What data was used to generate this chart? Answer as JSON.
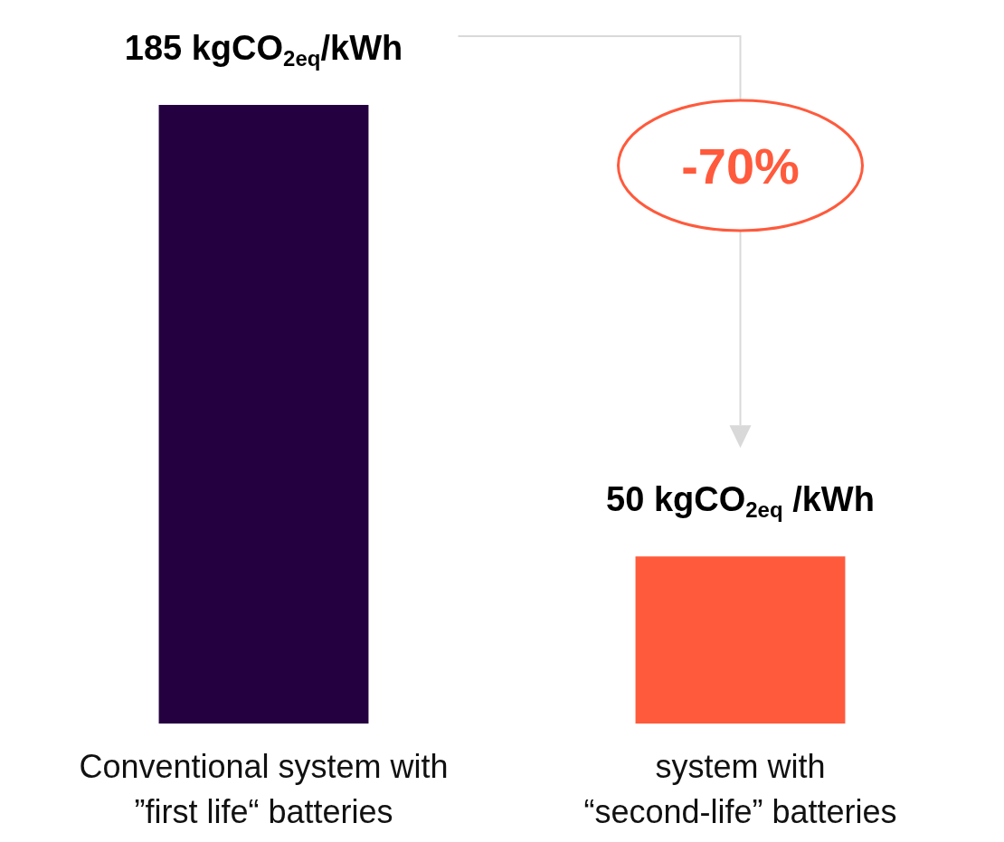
{
  "chart_data": {
    "type": "bar",
    "categories": [
      "Conventional system with\n”first life“ batteries",
      "system with\n“second-life” batteries"
    ],
    "values": [
      185,
      50
    ],
    "colors": [
      "#250040",
      "#ff5a3c"
    ],
    "value_labels": [
      "185 kgCO$_{2eq}$/kWh",
      "50 kgCO$_{2eq}$ /kWh"
    ],
    "annotations": [
      "-70%"
    ]
  }
}
